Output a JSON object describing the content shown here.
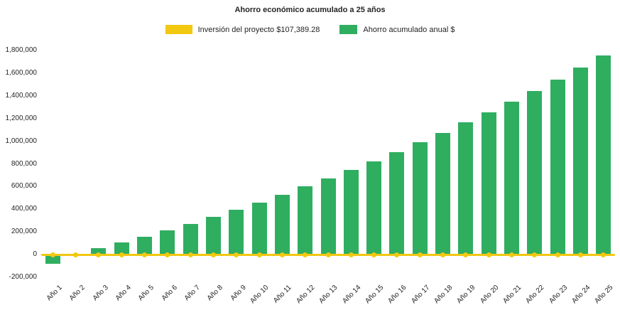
{
  "chart": {
    "title": "Ahorro económico acumulado a 25 años",
    "text_color": "#252423",
    "background": "#FFFFFF",
    "legend": [
      {
        "label": "Inversión del proyecto $107,389.28",
        "color": "#F2C811",
        "type": "line"
      },
      {
        "label": "Ahorro acumulado anual $",
        "color": "#2FAE60",
        "type": "bar"
      }
    ]
  },
  "chart_data": {
    "type": "bar",
    "title": "Ahorro económico acumulado a 25 años",
    "categories": [
      "Año 1",
      "Año 2",
      "Año 3",
      "Año 4",
      "Año 5",
      "Año 6",
      "Año 7",
      "Año 8",
      "Año 9",
      "Año 10",
      "Año 11",
      "Año 12",
      "Año 13",
      "Año 14",
      "Año 15",
      "Año 16",
      "Año 17",
      "Año 18",
      "Año 19",
      "Año 20",
      "Año 21",
      "Año 22",
      "Año 23",
      "Año 24",
      "Año 25"
    ],
    "series": [
      {
        "name": "Ahorro acumulado anual $",
        "type": "bar",
        "color": "#2FAE60",
        "values": [
          -80000,
          10000,
          60000,
          110000,
          160000,
          215000,
          270000,
          330000,
          395000,
          460000,
          530000,
          600000,
          670000,
          745000,
          825000,
          905000,
          990000,
          1075000,
          1165000,
          1255000,
          1350000,
          1445000,
          1545000,
          1650000,
          1755000
        ]
      },
      {
        "name": "Inversión del proyecto $107,389.28",
        "type": "line",
        "color": "#F2C811",
        "investment_amount": 107389.28,
        "plotted_value": 0,
        "marker": "circle"
      }
    ],
    "ylim": [
      -200000,
      1800000
    ],
    "yticks": [
      {
        "value": -200000,
        "label": "-200,000"
      },
      {
        "value": 0,
        "label": "0"
      },
      {
        "value": 200000,
        "label": "200,000"
      },
      {
        "value": 400000,
        "label": "400,000"
      },
      {
        "value": 600000,
        "label": "600,000"
      },
      {
        "value": 800000,
        "label": "800,000"
      },
      {
        "value": 1000000,
        "label": "1,000,000"
      },
      {
        "value": 1200000,
        "label": "1,200,000"
      },
      {
        "value": 1400000,
        "label": "1,400,000"
      },
      {
        "value": 1600000,
        "label": "1,600,000"
      },
      {
        "value": 1800000,
        "label": "1,800,000"
      }
    ],
    "xlabel": "",
    "ylabel": "",
    "grid": false,
    "legend_position": "top-center"
  }
}
